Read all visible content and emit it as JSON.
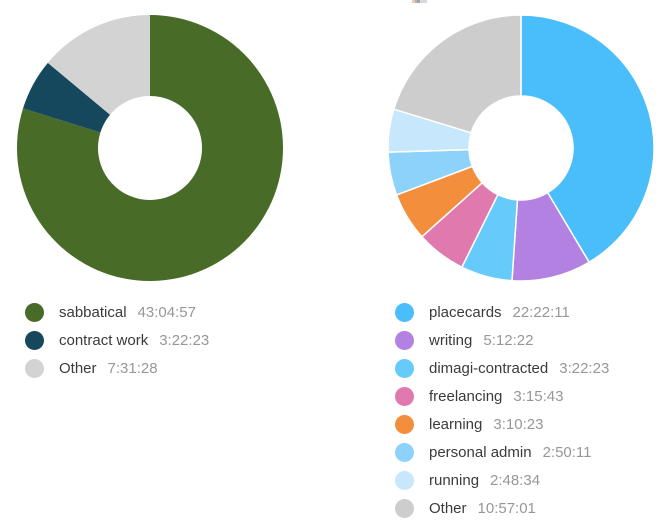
{
  "page": {
    "background": "#ffffff",
    "note_top_artifact": "tiny clipped remnant of a title cropped off at the very top edge"
  },
  "chart_data": [
    {
      "type": "pie",
      "subtype": "donut",
      "title": "",
      "direction": "clockwise",
      "start_angle_deg": 0,
      "legend_position": "bottom",
      "units": "duration h:mm:ss",
      "categories": [
        "sabbatical",
        "contract work",
        "Other"
      ],
      "values_hms": [
        "43:04:57",
        "3:22:23",
        "7:31:28"
      ],
      "values_seconds": [
        155097,
        12143,
        27088
      ],
      "total_seconds": 194328,
      "percentages": [
        79.8,
        6.2,
        13.9
      ],
      "colors": [
        "#486B28",
        "#15485C",
        "#D3D3D3"
      ],
      "slice_border_color": "#ffffff",
      "slice_border_px": 0
    },
    {
      "type": "pie",
      "subtype": "donut",
      "title": "",
      "direction": "clockwise",
      "start_angle_deg": 0,
      "legend_position": "bottom",
      "units": "duration h:mm:ss",
      "categories": [
        "placecards",
        "writing",
        "dimagi-contracted",
        "freelancing",
        "learning",
        "personal admin",
        "running",
        "Other"
      ],
      "values_hms": [
        "22:22:11",
        "5:12:22",
        "3:22:23",
        "3:15:43",
        "3:10:23",
        "2:50:11",
        "2:48:34",
        "10:57:01"
      ],
      "values_seconds": [
        80531,
        18742,
        12143,
        11743,
        11423,
        10211,
        10114,
        39421
      ],
      "total_seconds": 194328,
      "percentages": [
        41.4,
        9.6,
        6.2,
        6.0,
        5.9,
        5.3,
        5.2,
        20.3
      ],
      "colors": [
        "#4ABEFA",
        "#B381E2",
        "#66CAFB",
        "#E07AAE",
        "#F28E3C",
        "#8DD3F9",
        "#C6E7FC",
        "#CDCDCD"
      ],
      "slice_border_color": "#ffffff",
      "slice_border_px": 1.5
    }
  ],
  "legend_style": {
    "label_color": "#3b3b3b",
    "value_color": "#979797"
  }
}
